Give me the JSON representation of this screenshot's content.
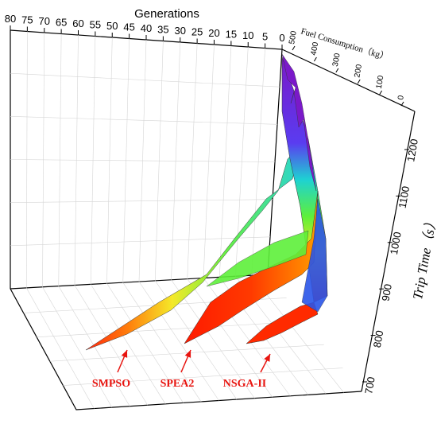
{
  "chart_data": {
    "type": "surface",
    "series": [
      {
        "name": "SMPSO",
        "x_generations": [
          0,
          20,
          40,
          60,
          80
        ],
        "fuel_kg": [
          40,
          200,
          350,
          450,
          480
        ],
        "trip_time_s": [
          1210,
          1020,
          880,
          790,
          760
        ]
      },
      {
        "name": "SPEA2",
        "x_generations": [
          0,
          15,
          30,
          45,
          60
        ],
        "fuel_kg": [
          60,
          180,
          300,
          400,
          420
        ],
        "trip_time_s": [
          1180,
          1000,
          900,
          820,
          780
        ]
      },
      {
        "name": "NSGA-II",
        "x_generations": [
          0,
          10,
          20,
          30,
          40
        ],
        "fuel_kg": [
          80,
          160,
          240,
          300,
          320
        ],
        "trip_time_s": [
          1150,
          980,
          880,
          810,
          770
        ]
      }
    ],
    "axes": {
      "generations": {
        "title": "Generations",
        "ticks": [
          "80",
          "75",
          "70",
          "65",
          "60",
          "55",
          "50",
          "45",
          "40",
          "35",
          "30",
          "25",
          "20",
          "15",
          "10",
          "5",
          "0"
        ],
        "range": [
          0,
          80
        ]
      },
      "fuel": {
        "title": "Fuel Consumption（kg）",
        "ticks": [
          "500",
          "400",
          "300",
          "200",
          "100",
          "0"
        ],
        "range": [
          0,
          500
        ]
      },
      "trip_time": {
        "title": "Trip Time（s）",
        "ticks": [
          "1200",
          "1100",
          "1000",
          "900",
          "800",
          "700"
        ],
        "range": [
          700,
          1250
        ]
      }
    },
    "annotations": [
      "SMPSO",
      "SPEA2",
      "NSGA-II"
    ],
    "grid": true,
    "colors": {
      "annotation": "#e8140f",
      "high": "#7a19c9",
      "mid": "#1ed2d2",
      "low": "#ff1a00"
    }
  }
}
